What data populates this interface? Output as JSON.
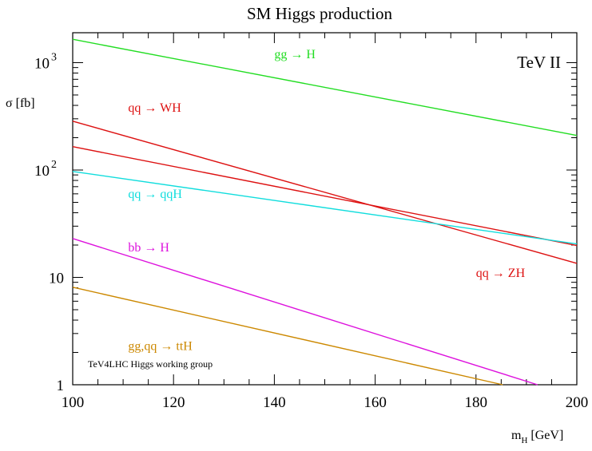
{
  "chart_data": {
    "type": "line",
    "title": "SM Higgs production",
    "corner_label": "TeV II",
    "note": "TeV4LHC Higgs working group",
    "xlabel": {
      "main": "m",
      "sub": "H",
      "unit": " [GeV]"
    },
    "ylabel": "σ [fb]",
    "xlim": [
      100,
      200
    ],
    "ylim": [
      1,
      1900
    ],
    "yscale": "log",
    "grid": false,
    "x_ticks": [
      {
        "value": 100,
        "label": "100"
      },
      {
        "value": 120,
        "label": "120"
      },
      {
        "value": 140,
        "label": "140"
      },
      {
        "value": 160,
        "label": "160"
      },
      {
        "value": 180,
        "label": "180"
      },
      {
        "value": 200,
        "label": "200"
      }
    ],
    "x_minor_step": 5,
    "y_ticks": [
      {
        "value": 1,
        "label": "1"
      },
      {
        "value": 10,
        "label": "10"
      },
      {
        "value": 100,
        "base": "10",
        "exp": "2"
      },
      {
        "value": 1000,
        "base": "10",
        "exp": "3"
      }
    ],
    "series": [
      {
        "name": "gg → H",
        "color": "#22dd22",
        "x": [
          100,
          200
        ],
        "y": [
          1650,
          210
        ],
        "label_at": [
          140,
          1200
        ],
        "label_anchor": "start"
      },
      {
        "name": "qq → WH",
        "color": "#dd1111",
        "x": [
          100,
          200
        ],
        "y": [
          285,
          13.5
        ],
        "label_at": [
          111,
          380
        ],
        "label_anchor": "start"
      },
      {
        "name": "qq → ZH",
        "color": "#dd1111",
        "x": [
          100,
          200
        ],
        "y": [
          165,
          19.8
        ],
        "label_at": [
          180,
          11.0
        ],
        "label_anchor": "start"
      },
      {
        "name": "qq → qqH",
        "color": "#11dddd",
        "x": [
          100,
          200
        ],
        "y": [
          97,
          20.5
        ],
        "label_at": [
          111,
          60
        ],
        "label_anchor": "start"
      },
      {
        "name": "bb → H",
        "color": "#dd11dd",
        "x": [
          100,
          192.2
        ],
        "y": [
          23,
          1
        ],
        "label_at": [
          111,
          19
        ],
        "label_anchor": "start"
      },
      {
        "name": "gg,qq → ttH",
        "color": "#cc8800",
        "x": [
          100,
          185.3
        ],
        "y": [
          8.1,
          1
        ],
        "label_at": [
          111,
          2.3
        ],
        "label_anchor": "start"
      }
    ]
  }
}
